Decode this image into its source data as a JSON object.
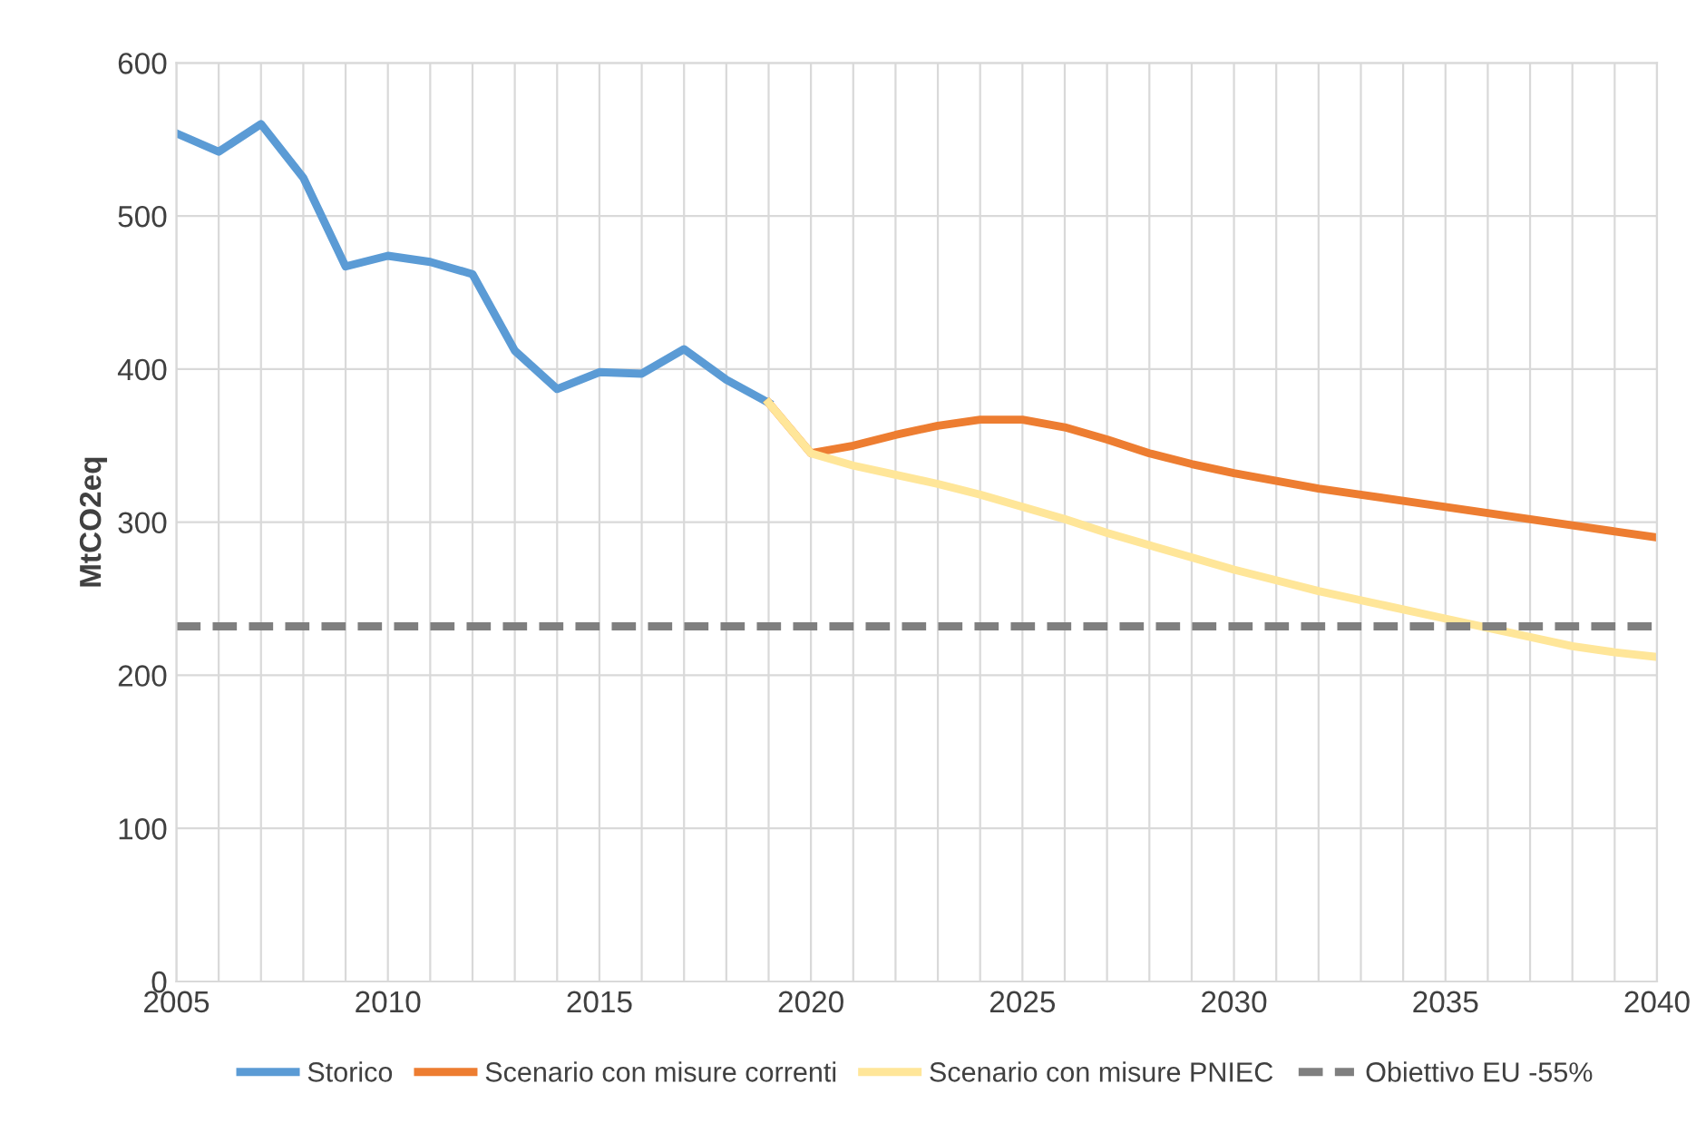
{
  "chart_data": {
    "type": "line",
    "ylabel": "MtCO2eq",
    "x": [
      2005,
      2006,
      2007,
      2008,
      2009,
      2010,
      2011,
      2012,
      2013,
      2014,
      2015,
      2016,
      2017,
      2018,
      2019,
      2020,
      2021,
      2022,
      2023,
      2024,
      2025,
      2026,
      2027,
      2028,
      2029,
      2030,
      2031,
      2032,
      2033,
      2034,
      2035,
      2036,
      2037,
      2038,
      2039,
      2040
    ],
    "series": [
      {
        "name": "Storico",
        "color": "#5b9bd5",
        "values": [
          554,
          542,
          560,
          525,
          467,
          474,
          470,
          462,
          412,
          387,
          398,
          397,
          413,
          393,
          378,
          null,
          null,
          null,
          null,
          null,
          null,
          null,
          null,
          null,
          null,
          null,
          null,
          null,
          null,
          null,
          null,
          null,
          null,
          null,
          null,
          null
        ]
      },
      {
        "name": "Scenario con misure correnti",
        "color": "#ed7d31",
        "values": [
          null,
          null,
          null,
          null,
          null,
          null,
          null,
          null,
          null,
          null,
          null,
          null,
          null,
          null,
          378,
          345,
          350,
          357,
          363,
          367,
          367,
          362,
          354,
          345,
          338,
          332,
          327,
          322,
          318,
          314,
          310,
          306,
          302,
          298,
          294,
          290
        ]
      },
      {
        "name": "Scenario con misure PNIEC",
        "color": "#ffe699",
        "values": [
          null,
          null,
          null,
          null,
          null,
          null,
          null,
          null,
          null,
          null,
          null,
          null,
          null,
          null,
          378,
          345,
          337,
          331,
          325,
          318,
          310,
          302,
          293,
          285,
          277,
          269,
          262,
          255,
          249,
          243,
          237,
          231,
          225,
          219,
          215,
          212
        ]
      },
      {
        "name": "Obiettivo EU -55%",
        "color": "#7f7f7f",
        "line_style": "dashed",
        "x": [
          2005,
          2040
        ],
        "values": [
          232,
          232
        ]
      }
    ],
    "xlim": [
      2005,
      2040
    ],
    "xticks": [
      2005,
      {
        "value": 2006,
        "label": null
      },
      {
        "value": 2007,
        "label": null
      },
      {
        "value": 2008,
        "label": null
      },
      {
        "value": 2009,
        "label": null
      },
      2010,
      {
        "value": 2011,
        "label": null
      },
      {
        "value": 2012,
        "label": null
      },
      {
        "value": 2013,
        "label": null
      },
      {
        "value": 2014,
        "label": null
      },
      2015,
      {
        "value": 2016,
        "label": null
      },
      {
        "value": 2017,
        "label": null
      },
      {
        "value": 2018,
        "label": null
      },
      {
        "value": 2019,
        "label": null
      },
      2020,
      {
        "value": 2021,
        "label": null
      },
      {
        "value": 2022,
        "label": null
      },
      {
        "value": 2023,
        "label": null
      },
      {
        "value": 2024,
        "label": null
      },
      2025,
      {
        "value": 2026,
        "label": null
      },
      {
        "value": 2027,
        "label": null
      },
      {
        "value": 2028,
        "label": null
      },
      {
        "value": 2029,
        "label": null
      },
      2030,
      {
        "value": 2031,
        "label": null
      },
      {
        "value": 2032,
        "label": null
      },
      {
        "value": 2033,
        "label": null
      },
      {
        "value": 2034,
        "label": null
      },
      2035,
      {
        "value": 2036,
        "label": null
      },
      {
        "value": 2037,
        "label": null
      },
      {
        "value": 2038,
        "label": null
      },
      {
        "value": 2039,
        "label": null
      },
      2040
    ],
    "ylim": [
      0,
      600
    ],
    "yticks": [
      0,
      100,
      200,
      300,
      400,
      500,
      600
    ],
    "grid": true,
    "legend": "bottom",
    "marker": "none",
    "line_style": "solid"
  }
}
